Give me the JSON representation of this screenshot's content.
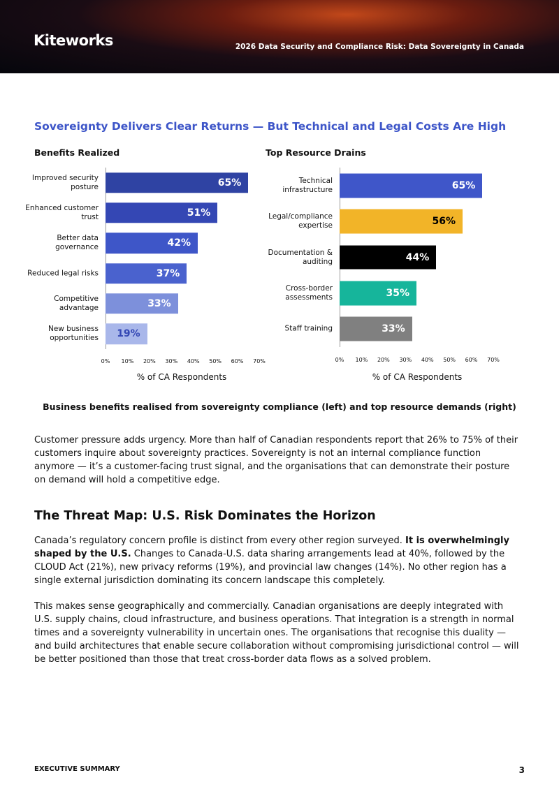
{
  "header": {
    "logo": "Kiteworks",
    "title": "2026 Data Security and Compliance Risk: Data Sovereignty in Canada"
  },
  "figure_title": "Sovereignty Delivers Clear Returns — But Technical and Legal Costs Are High",
  "chart_data": [
    {
      "type": "bar",
      "orientation": "horizontal",
      "title": "Benefits Realized",
      "categories": [
        "Improved security posture",
        "Enhanced customer trust",
        "Better data governance",
        "Reduced legal risks",
        "Competitive advantage",
        "New business opportunities"
      ],
      "values": [
        65,
        51,
        42,
        37,
        33,
        19
      ],
      "value_labels": [
        "65%",
        "51%",
        "42%",
        "37%",
        "33%",
        "19%"
      ],
      "colors": [
        "#2f43a3",
        "#3447b4",
        "#3e56c8",
        "#4a62ce",
        "#7d90db",
        "#a9b7ea"
      ],
      "label_colors": [
        "#ffffff",
        "#ffffff",
        "#ffffff",
        "#ffffff",
        "#ffffff",
        "#3447b4"
      ],
      "xlim": [
        0,
        70
      ],
      "xticks": [
        {
          "value": 0,
          "label": "0%"
        },
        {
          "value": 10,
          "label": "10%"
        },
        {
          "value": 20,
          "label": "20%"
        },
        {
          "value": 30,
          "label": "30%"
        },
        {
          "value": 40,
          "label": "40%"
        },
        {
          "value": 50,
          "label": "50%"
        },
        {
          "value": 60,
          "label": "60%"
        },
        {
          "value": 70,
          "label": "70%"
        }
      ],
      "xlabel": "% of CA Respondents"
    },
    {
      "type": "bar",
      "orientation": "horizontal",
      "title": "Top Resource Drains",
      "categories": [
        "Technical infrastructure",
        "Legal/compliance expertise",
        "Documentation & auditing",
        "Cross-border assessments",
        "Staff training"
      ],
      "values": [
        65,
        56,
        44,
        35,
        33
      ],
      "value_labels": [
        "65%",
        "56%",
        "44%",
        "35%",
        "33%"
      ],
      "colors": [
        "#3f56c9",
        "#f2b428",
        "#000000",
        "#16b59b",
        "#808080"
      ],
      "label_colors": [
        "#ffffff",
        "#000000",
        "#ffffff",
        "#ffffff",
        "#ffffff"
      ],
      "xlim": [
        0,
        70
      ],
      "xticks": [
        {
          "value": 0,
          "label": "0%"
        },
        {
          "value": 10,
          "label": "10%"
        },
        {
          "value": 20,
          "label": "20%"
        },
        {
          "value": 30,
          "label": "30%"
        },
        {
          "value": 40,
          "label": "40%"
        },
        {
          "value": 50,
          "label": "50%"
        },
        {
          "value": 60,
          "label": "60%"
        },
        {
          "value": 70,
          "label": "70%"
        }
      ],
      "xlabel": "% of CA Respondents"
    }
  ],
  "caption": "Business benefits realised from sovereignty compliance (left) and top resource demands (right)",
  "intro": "Customer pressure adds urgency. More than half of Canadian respondents report that 26% to 75% of their customers inquire about sovereignty practices. Sovereignty is not an internal compliance function anymore — it’s a customer-facing trust signal, and the organisations that can demonstrate their posture on demand will hold a competitive edge.",
  "section": {
    "title": "The Threat Map: U.S. Risk Dominates the Horizon",
    "paragraphs": [
      [
        {
          "text": "Canada’s regulatory concern profile is distinct from every other region surveyed. "
        },
        {
          "text": "It is overwhelmingly shaped by the U.S.",
          "bold": true
        },
        {
          "text": " Changes to Canada-U.S. data sharing arrangements lead at 40%, followed by the CLOUD Act (21%), new privacy reforms (19%), and provincial law changes (14%). No other region has a single external jurisdiction dominating its concern landscape this completely."
        }
      ],
      [
        {
          "text": "This makes sense geographically and commercially. Canadian organisations are deeply integrated with U.S. supply chains, cloud infrastructure, and business operations. That integration is a strength in normal times and a sovereignty vulnerability in uncertain ones. The organisations that recognise this duality — and build architectures that enable secure collaboration without compromising jurisdictional control — will be better positioned than those that treat cross-border data flows as a solved problem."
        }
      ]
    ]
  },
  "footer": {
    "label": "EXECUTIVE SUMMARY",
    "page": "3"
  }
}
